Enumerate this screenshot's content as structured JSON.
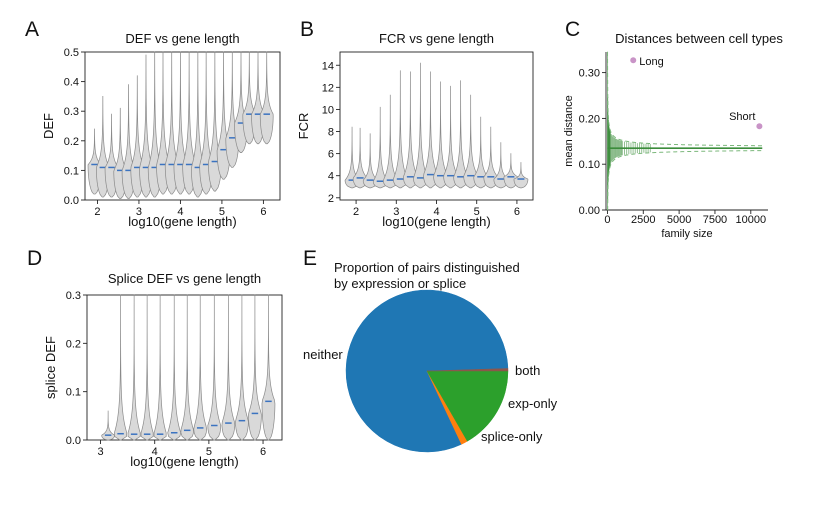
{
  "panels": {
    "A": {
      "letter": "A"
    },
    "B": {
      "letter": "B"
    },
    "C": {
      "letter": "C"
    },
    "D": {
      "letter": "D"
    },
    "E": {
      "letter": "E"
    }
  },
  "chart_data": [
    {
      "id": "A",
      "type": "violin",
      "title": "DEF vs gene length",
      "xlabel": "log10(gene length)",
      "ylabel": "DEF",
      "xlim": [
        1.7,
        6.4
      ],
      "ylim": [
        0,
        0.5
      ],
      "xticks": [
        2,
        3,
        4,
        5,
        6
      ],
      "yticks": [
        0.0,
        0.1,
        0.2,
        0.3,
        0.4,
        0.5
      ],
      "ytick_labels": [
        "0.0",
        "0.1",
        "0.2",
        "0.3",
        "0.4",
        "0.5"
      ],
      "median_color": "#3b73c0",
      "positions": [
        1.93,
        2.13,
        2.34,
        2.55,
        2.75,
        2.96,
        3.17,
        3.38,
        3.58,
        3.79,
        4.0,
        4.21,
        4.42,
        4.62,
        4.83,
        5.04,
        5.25,
        5.46,
        5.66,
        5.87,
        6.08
      ],
      "medians": [
        0.12,
        0.11,
        0.11,
        0.1,
        0.1,
        0.11,
        0.11,
        0.11,
        0.12,
        0.12,
        0.12,
        0.12,
        0.11,
        0.12,
        0.13,
        0.17,
        0.21,
        0.26,
        0.29,
        0.29,
        0.29
      ],
      "maxima": [
        0.24,
        0.35,
        0.29,
        0.31,
        0.39,
        0.42,
        0.49,
        0.5,
        0.5,
        0.5,
        0.5,
        0.5,
        0.5,
        0.5,
        0.5,
        0.5,
        0.5,
        0.5,
        0.5,
        0.5,
        0.5
      ]
    },
    {
      "id": "B",
      "type": "violin",
      "title": "FCR vs gene length",
      "xlabel": "log10(gene length)",
      "ylabel": "FCR",
      "xlim": [
        1.6,
        6.4
      ],
      "ylim": [
        1.8,
        15.2
      ],
      "xticks": [
        2,
        3,
        4,
        5,
        6
      ],
      "yticks": [
        2,
        4,
        6,
        8,
        10,
        12,
        14
      ],
      "ytick_labels": [
        "2",
        "4",
        "6",
        "8",
        "10",
        "12",
        "14"
      ],
      "median_color": "#3b73c0",
      "positions": [
        1.9,
        2.1,
        2.35,
        2.6,
        2.85,
        3.1,
        3.35,
        3.6,
        3.85,
        4.1,
        4.35,
        4.6,
        4.85,
        5.1,
        5.35,
        5.6,
        5.85,
        6.1
      ],
      "medians": [
        3.6,
        3.8,
        3.6,
        3.5,
        3.6,
        3.7,
        3.9,
        3.8,
        4.1,
        4.0,
        4.0,
        3.9,
        4.0,
        3.9,
        3.9,
        3.7,
        3.9,
        3.7
      ],
      "maxima": [
        8.4,
        8.3,
        7.8,
        10.2,
        11.3,
        13.5,
        13.4,
        14.2,
        13.4,
        12.5,
        12.1,
        12.6,
        11.3,
        9.3,
        8.4,
        7.0,
        6.0,
        5.2
      ]
    },
    {
      "id": "C",
      "type": "scatter",
      "title": "Distances between cell types",
      "xlabel": "family size",
      "ylabel": "mean distance",
      "xlim": [
        -100,
        11200
      ],
      "ylim": [
        0,
        0.345
      ],
      "xticks": [
        0,
        2500,
        5000,
        7500,
        10000
      ],
      "xtick_labels": [
        "0",
        "2500",
        "5000",
        "7500",
        "10000"
      ],
      "yticks": [
        0.0,
        0.1,
        0.2,
        0.3
      ],
      "ytick_labels": [
        "0.00",
        "0.10",
        "0.20",
        "0.30"
      ],
      "mean_line": 0.135,
      "points": [
        {
          "label": "Long",
          "x": 1800,
          "y": 0.327
        },
        {
          "label": "Short",
          "x": 10600,
          "y": 0.183
        }
      ],
      "point_color": "#c994c7",
      "line_color": "#3b8c3b"
    },
    {
      "id": "D",
      "type": "violin",
      "title": "Splice DEF vs gene length",
      "xlabel": "log10(gene length)",
      "ylabel": "splice DEF",
      "xlim": [
        2.75,
        6.35
      ],
      "ylim": [
        0,
        0.3
      ],
      "xticks": [
        3,
        4,
        5,
        6
      ],
      "yticks": [
        0.0,
        0.1,
        0.2,
        0.3
      ],
      "ytick_labels": [
        "0.0",
        "0.1",
        "0.2",
        "0.3"
      ],
      "median_color": "#3b73c0",
      "positions": [
        3.14,
        3.37,
        3.62,
        3.86,
        4.1,
        4.36,
        4.6,
        4.84,
        5.1,
        5.36,
        5.61,
        5.85,
        6.1
      ],
      "medians": [
        0.01,
        0.013,
        0.012,
        0.012,
        0.012,
        0.015,
        0.02,
        0.025,
        0.03,
        0.035,
        0.04,
        0.055,
        0.08
      ],
      "maxima": [
        0.06,
        0.3,
        0.3,
        0.3,
        0.3,
        0.3,
        0.3,
        0.3,
        0.3,
        0.3,
        0.3,
        0.3,
        0.3
      ]
    },
    {
      "id": "E",
      "type": "pie",
      "title_lines": [
        "Proportion of pairs distinguished",
        "by expression or splice"
      ],
      "slices": [
        {
          "label": "neither",
          "value": 0.815,
          "color": "#1f77b4"
        },
        {
          "label": "splice-only",
          "value": 0.013,
          "color": "#ff7f0e"
        },
        {
          "label": "exp-only",
          "value": 0.167,
          "color": "#2ca02c"
        },
        {
          "label": "both",
          "value": 0.005,
          "color": "#8c564b"
        }
      ]
    }
  ]
}
